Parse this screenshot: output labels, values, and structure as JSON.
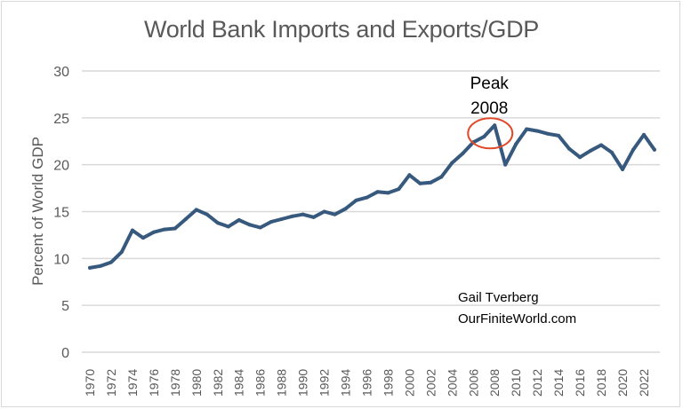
{
  "chart_data": {
    "type": "line",
    "title": "World Bank Imports and Exports/GDP",
    "xlabel": "",
    "ylabel": "Percent of World GDP",
    "ylim": [
      0,
      30
    ],
    "yticks": [
      0,
      5,
      10,
      15,
      20,
      25,
      30
    ],
    "xticks": [
      1970,
      1972,
      1974,
      1976,
      1978,
      1980,
      1982,
      1984,
      1986,
      1988,
      1990,
      1992,
      1994,
      1996,
      1998,
      2000,
      2002,
      2004,
      2006,
      2008,
      2010,
      2012,
      2014,
      2016,
      2018,
      2020,
      2022
    ],
    "grid": true,
    "legend": "none",
    "series": [
      {
        "name": "Imports and Exports/GDP",
        "color": "#36597d",
        "x": [
          1970,
          1971,
          1972,
          1973,
          1974,
          1975,
          1976,
          1977,
          1978,
          1979,
          1980,
          1981,
          1982,
          1983,
          1984,
          1985,
          1986,
          1987,
          1988,
          1989,
          1990,
          1991,
          1992,
          1993,
          1994,
          1995,
          1996,
          1997,
          1998,
          1999,
          2000,
          2001,
          2002,
          2003,
          2004,
          2005,
          2006,
          2007,
          2008,
          2009,
          2010,
          2011,
          2012,
          2013,
          2014,
          2015,
          2016,
          2017,
          2018,
          2019,
          2020,
          2021,
          2022,
          2023
        ],
        "values": [
          9.0,
          9.2,
          9.6,
          10.7,
          13.0,
          12.2,
          12.8,
          13.1,
          13.2,
          14.2,
          15.2,
          14.7,
          13.8,
          13.4,
          14.1,
          13.6,
          13.3,
          13.9,
          14.2,
          14.5,
          14.7,
          14.4,
          15.0,
          14.7,
          15.3,
          16.2,
          16.5,
          17.1,
          17.0,
          17.4,
          18.9,
          18.0,
          18.1,
          18.7,
          20.2,
          21.2,
          22.4,
          23.0,
          24.2,
          20.0,
          22.2,
          23.8,
          23.6,
          23.3,
          23.1,
          21.7,
          20.8,
          21.5,
          22.1,
          21.3,
          19.5,
          21.6,
          23.2,
          21.6
        ]
      }
    ],
    "annotations": [
      {
        "text_line1": "Peak",
        "text_line2": "2008",
        "target_year": 2008,
        "highlight_color": "#e04a2a"
      },
      {
        "text_line1": "Gail Tverberg",
        "text_line2": "OurFiniteWorld.com"
      }
    ],
    "colors": {
      "grid": "#d9d9d9",
      "axis_text": "#595959",
      "title": "#595959"
    }
  }
}
